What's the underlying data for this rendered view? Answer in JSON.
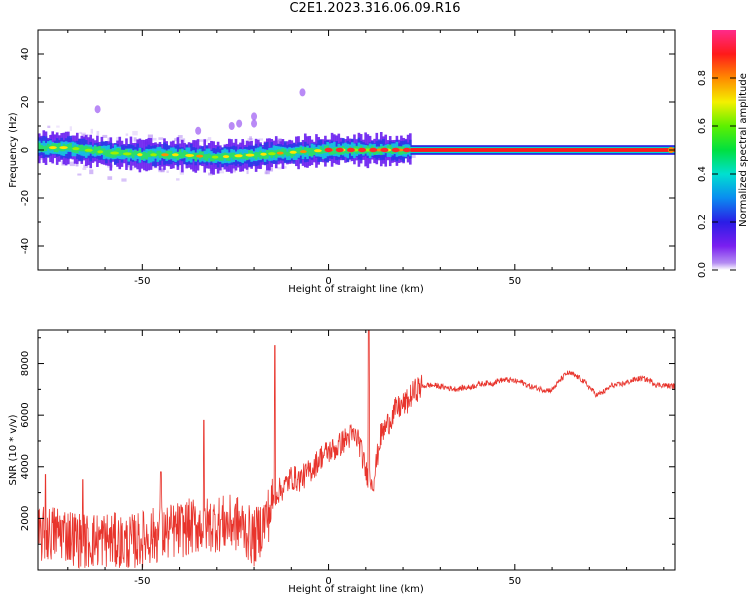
{
  "title": "C2E1.2023.316.06.09.R16",
  "colorbar": {
    "label": "Normalized spectral amplitude",
    "ticks": [
      "0.0",
      "0.2",
      "0.4",
      "0.6",
      "0.8"
    ],
    "tick_values": [
      0.0,
      0.2,
      0.4,
      0.6,
      0.8
    ],
    "range": [
      0,
      1
    ],
    "colormap": "rainbow (purple-blue-cyan-green-yellow-orange-red-pink)"
  },
  "chart_data": [
    {
      "type": "heatmap",
      "xlabel": "Height of straight line (km)",
      "ylabel": "Frequency (Hz)",
      "xlim": [
        -78,
        93
      ],
      "ylim": [
        -50,
        50
      ],
      "xticks": [
        -50,
        0,
        50
      ],
      "yticks": [
        -40,
        -20,
        0,
        20,
        40
      ],
      "grid": false,
      "ridge": {
        "x": [
          -78,
          -70,
          -60,
          -50,
          -40,
          -30,
          -20,
          -10,
          0,
          10,
          20,
          30,
          60,
          93
        ],
        "y": [
          1,
          1,
          -1,
          -2,
          -2,
          -3,
          -2,
          -1,
          0,
          0,
          0,
          0,
          0,
          0
        ]
      }
    },
    {
      "type": "line",
      "xlabel": "Height of straight line (km)",
      "ylabel": "SNR (10 * v/v)",
      "xlim": [
        -78,
        93
      ],
      "ylim": [
        0,
        9300
      ],
      "xticks": [
        -50,
        0,
        50
      ],
      "yticks": [
        2000,
        4000,
        6000,
        8000
      ],
      "color": "#e8342c",
      "grid": false,
      "series": [
        {
          "x": [
            -78,
            -72,
            -66,
            -60,
            -54,
            -48,
            -42,
            -36,
            -30,
            -24,
            -20,
            -16,
            -14,
            -12,
            -10,
            -8,
            -6,
            -4,
            -2,
            0,
            2,
            4,
            6,
            8,
            10,
            12,
            14,
            16,
            18,
            20,
            24,
            28,
            32,
            36,
            40,
            44,
            48,
            52,
            56,
            60,
            64,
            68,
            72,
            76,
            80,
            84,
            88,
            93
          ],
          "y": [
            1300,
            1500,
            1100,
            1200,
            1000,
            1300,
            1500,
            1700,
            1800,
            1800,
            1200,
            2200,
            3000,
            3200,
            3600,
            3500,
            3700,
            4000,
            4400,
            4600,
            4700,
            5000,
            5200,
            5100,
            3800,
            3400,
            5200,
            5700,
            6200,
            6400,
            6800,
            7000,
            7200,
            7300,
            7200,
            7000,
            7200,
            7400,
            7300,
            7000,
            7400,
            7200,
            6900,
            7400,
            7300,
            7200,
            7000,
            7300
          ]
        }
      ]
    }
  ]
}
